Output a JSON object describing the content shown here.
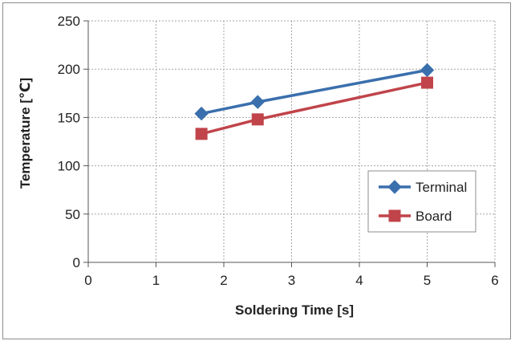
{
  "chart_data": {
    "type": "line",
    "title": "",
    "xlabel": "Soldering Time [s]",
    "ylabel": "Temperature [℃]",
    "xlim": [
      0,
      6
    ],
    "ylim": [
      0,
      250
    ],
    "xticks": [
      0,
      1,
      2,
      3,
      4,
      5,
      6
    ],
    "yticks": [
      0,
      50,
      100,
      150,
      200,
      250
    ],
    "xtick_labels": [
      "0",
      "1",
      "2",
      "3",
      "4",
      "5",
      "6"
    ],
    "ytick_labels": [
      "0",
      "50",
      "100",
      "150",
      "200",
      "250"
    ],
    "grid": true,
    "legend_position": "bottom-right",
    "series": [
      {
        "name": "Terminal",
        "marker": "diamond",
        "color": "#3a6fad",
        "x": [
          1.67,
          2.5,
          5
        ],
        "y": [
          154,
          166,
          199
        ]
      },
      {
        "name": "Board",
        "marker": "square",
        "color": "#c0444a",
        "x": [
          1.67,
          2.5,
          5
        ],
        "y": [
          133,
          148,
          186
        ]
      }
    ]
  }
}
